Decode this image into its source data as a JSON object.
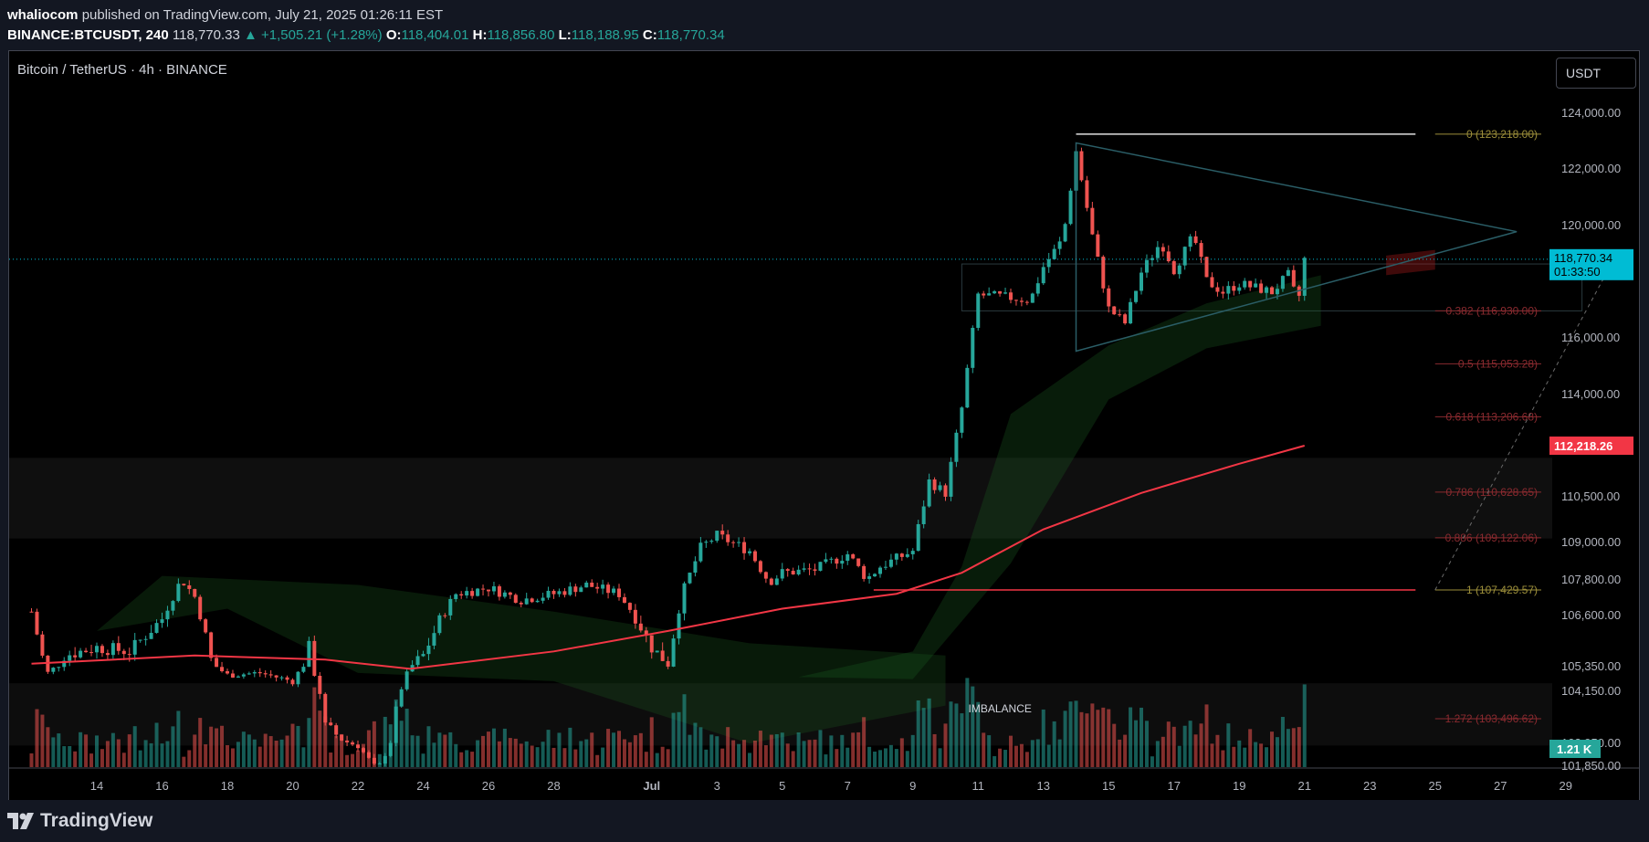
{
  "header": {
    "author": "whaliocom",
    "published_text": "published on TradingView.com, July 21, 2025 01:26:11 EST",
    "symbol": "BINANCE:BTCUSDT, 240",
    "last": "118,770.33",
    "change": "▲ +1,505.21 (+1.28%)",
    "o_label": "O:",
    "o_value": "118,404.01",
    "h_label": "H:",
    "h_value": "118,856.80",
    "l_label": "L:",
    "l_value": "118,188.95",
    "c_label": "C:",
    "c_value": "118,770.34"
  },
  "pane": {
    "title": "Bitcoin / TetherUS · 4h · BINANCE",
    "currency": "USDT"
  },
  "footer": {
    "brand": "TradingView"
  },
  "colors": {
    "up": "#26a69a",
    "down": "#ef5350",
    "ma": "#f23645",
    "fib_gold": "#9c8e3a",
    "fib_red": "#8a2a2f",
    "triangle": "#2a5d66",
    "price_line": "#00bcd4"
  },
  "chart_data": {
    "type": "candlestick",
    "title": "Bitcoin / TetherUS · 4h · BINANCE",
    "x_tick_labels": [
      "14",
      "16",
      "18",
      "20",
      "22",
      "24",
      "26",
      "28",
      "Jul",
      "3",
      "5",
      "7",
      "9",
      "11",
      "13",
      "15",
      "17",
      "19",
      "21",
      "23",
      "25",
      "27",
      "29"
    ],
    "y_tick_labels": [
      "124,000.00",
      "122,000.00",
      "120,000.00",
      "116,000.00",
      "114,000.00",
      "110,500.00",
      "109,000.00",
      "107,800.00",
      "106,600.00",
      "105,350.00",
      "104,150.00",
      "102,950.00",
      "101,850.00"
    ],
    "grid": false,
    "anchors": [
      {
        "x": "Jun 12",
        "y": 106700
      },
      {
        "x": "Jun 12.5",
        "y": 105000
      },
      {
        "x": "Jun 13",
        "y": 105600
      },
      {
        "x": "Jun 14",
        "y": 105800
      },
      {
        "x": "Jun 15",
        "y": 105700
      },
      {
        "x": "Jun 16",
        "y": 106500
      },
      {
        "x": "Jun 16.6",
        "y": 107800
      },
      {
        "x": "Jun 17",
        "y": 107200
      },
      {
        "x": "Jun 17.5",
        "y": 105500
      },
      {
        "x": "Jun 18",
        "y": 104900
      },
      {
        "x": "Jun 19",
        "y": 105000
      },
      {
        "x": "Jun 20",
        "y": 104600
      },
      {
        "x": "Jun 20.5",
        "y": 105800
      },
      {
        "x": "Jun 21",
        "y": 103300
      },
      {
        "x": "Jun 22",
        "y": 102800
      },
      {
        "x": "Jun 22.6",
        "y": 101600
      },
      {
        "x": "Jun 23",
        "y": 103000
      },
      {
        "x": "Jun 23.6",
        "y": 105300
      },
      {
        "x": "Jun 24",
        "y": 105600
      },
      {
        "x": "Jun 25",
        "y": 107300
      },
      {
        "x": "Jun 26",
        "y": 107500
      },
      {
        "x": "Jun 27",
        "y": 107100
      },
      {
        "x": "Jun 28",
        "y": 107300
      },
      {
        "x": "Jun 29",
        "y": 107600
      },
      {
        "x": "Jun 30",
        "y": 107300
      },
      {
        "x": "Jul 1",
        "y": 105800
      },
      {
        "x": "Jul 1.5",
        "y": 105400
      },
      {
        "x": "Jul 2",
        "y": 107500
      },
      {
        "x": "Jul 2.5",
        "y": 108800
      },
      {
        "x": "Jul 3",
        "y": 109200
      },
      {
        "x": "Jul 4",
        "y": 108700
      },
      {
        "x": "Jul 4.6",
        "y": 107700
      },
      {
        "x": "Jul 5",
        "y": 108000
      },
      {
        "x": "Jul 6",
        "y": 108100
      },
      {
        "x": "Jul 7",
        "y": 108600
      },
      {
        "x": "Jul 7.6",
        "y": 107800
      },
      {
        "x": "Jul 8",
        "y": 108200
      },
      {
        "x": "Jul 9",
        "y": 108700
      },
      {
        "x": "Jul 9.5",
        "y": 111000
      },
      {
        "x": "Jul 10",
        "y": 110600
      },
      {
        "x": "Jul 10.5",
        "y": 113500
      },
      {
        "x": "Jul 11",
        "y": 117500
      },
      {
        "x": "Jul 12",
        "y": 117400
      },
      {
        "x": "Jul 12.6",
        "y": 117300
      },
      {
        "x": "Jul 13",
        "y": 118500
      },
      {
        "x": "Jul 13.6",
        "y": 119500
      },
      {
        "x": "Jul 14",
        "y": 122600
      },
      {
        "x": "Jul 14.5",
        "y": 119600
      },
      {
        "x": "Jul 15",
        "y": 117000
      },
      {
        "x": "Jul 15.5",
        "y": 116500
      },
      {
        "x": "Jul 16",
        "y": 118300
      },
      {
        "x": "Jul 16.6",
        "y": 119400
      },
      {
        "x": "Jul 17",
        "y": 118400
      },
      {
        "x": "Jul 17.6",
        "y": 119600
      },
      {
        "x": "Jul 18",
        "y": 118000
      },
      {
        "x": "Jul 18.5",
        "y": 117600
      },
      {
        "x": "Jul 19",
        "y": 117900
      },
      {
        "x": "Jul 20",
        "y": 117600
      },
      {
        "x": "Jul 20.5",
        "y": 118200
      },
      {
        "x": "Jul 20.8",
        "y": 117200
      },
      {
        "x": "Jul 21",
        "y": 118770
      }
    ],
    "ma_line": [
      {
        "x": "Jun 12",
        "y": 105400
      },
      {
        "x": "Jun 17",
        "y": 105600
      },
      {
        "x": "Jun 21",
        "y": 105500
      },
      {
        "x": "Jun 23.6",
        "y": 105200
      },
      {
        "x": "Jun 28",
        "y": 105700
      },
      {
        "x": "Jul 1.5",
        "y": 106200
      },
      {
        "x": "Jul 5",
        "y": 106800
      },
      {
        "x": "Jul 8.5",
        "y": 107300
      },
      {
        "x": "Jul 10.5",
        "y": 108000
      },
      {
        "x": "Jul 13",
        "y": 109400
      },
      {
        "x": "Jul 16",
        "y": 110600
      },
      {
        "x": "Jul 19",
        "y": 111600
      },
      {
        "x": "Jul 21",
        "y": 112218
      }
    ],
    "ma_value": "112,218.26",
    "current_price": "118,770.34",
    "countdown": "01:33:50",
    "volume_badge": "1.21 K",
    "annotation": "IMBALANCE",
    "fib_levels": [
      {
        "label": "0 (123,218.00)",
        "price": 123218,
        "color": "gold"
      },
      {
        "label": "0.382 (116,930.00)",
        "price": 116930,
        "color": "red"
      },
      {
        "label": "0.5 (115,053.28)",
        "price": 115053,
        "color": "red"
      },
      {
        "label": "0.618 (113,206.68)",
        "price": 113207,
        "color": "red"
      },
      {
        "label": "0.786 (110,628.65)",
        "price": 110629,
        "color": "red"
      },
      {
        "label": "0.886 (109,122.06)",
        "price": 109122,
        "color": "red"
      },
      {
        "label": "1 (107,429.57)",
        "price": 107430,
        "color": "gold"
      },
      {
        "label": "1.272 (103,496.62)",
        "price": 103497,
        "color": "red"
      }
    ]
  }
}
